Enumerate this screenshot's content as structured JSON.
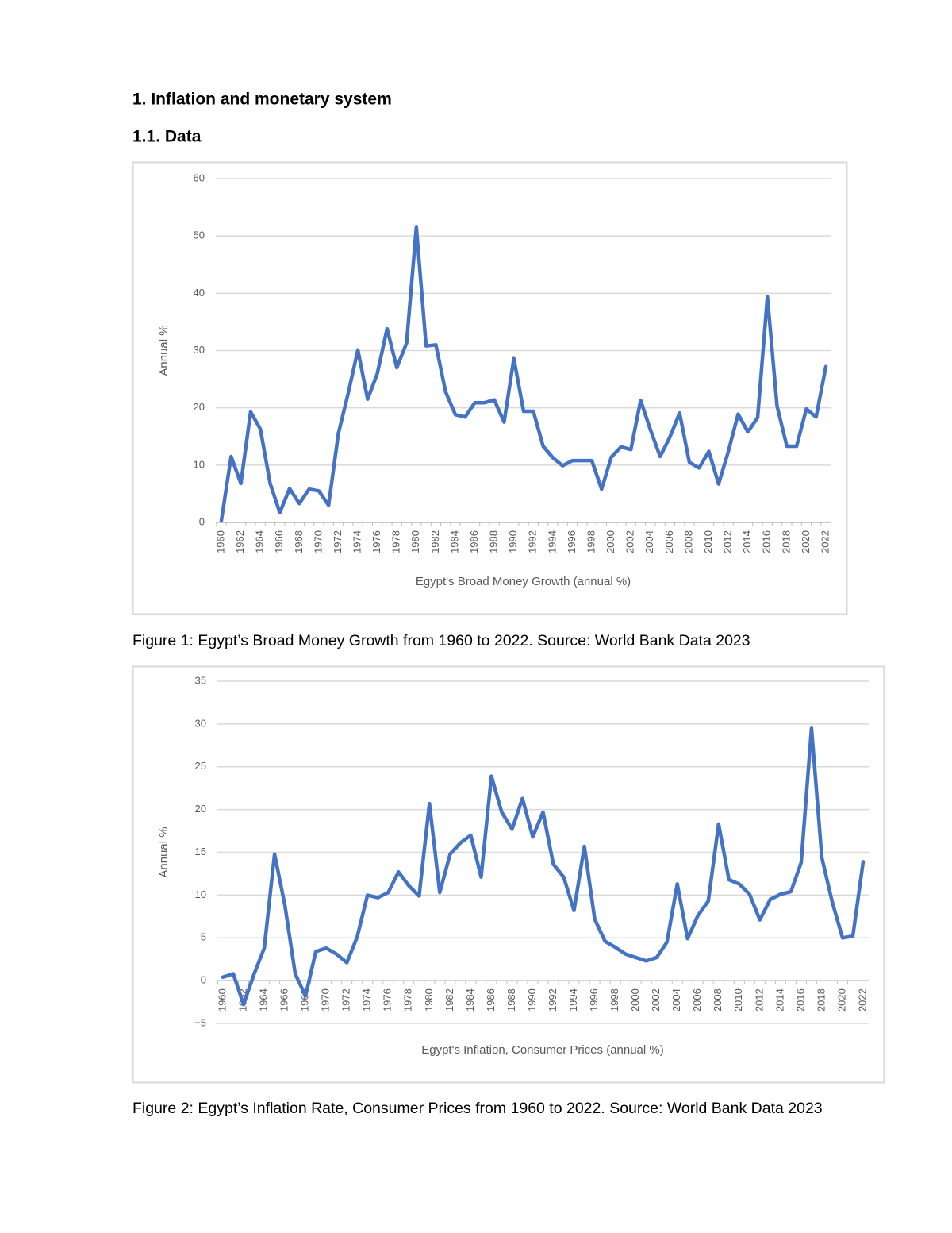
{
  "headings": [
    "1. Inflation and monetary system",
    "1.1. Data"
  ],
  "captions": [
    "Figure 1: Egypt’s Broad Money Growth from 1960 to 2022. Source: World Bank Data 2023",
    "Figure 2: Egypt’s Inflation Rate, Consumer Prices from 1960 to 2022. Source: World Bank Data 2023"
  ],
  "chart_data": [
    {
      "type": "line",
      "y_label": "Annual %",
      "x_label": "Egypt's Broad Money Growth (annual %)",
      "color": "#4472c4",
      "grid": true,
      "categories": [
        "1960",
        null,
        "1962",
        null,
        "1964",
        null,
        "1966",
        null,
        "1968",
        null,
        "1970",
        null,
        "1972",
        null,
        "1974",
        null,
        "1976",
        null,
        "1978",
        null,
        "1980",
        null,
        "1982",
        null,
        "1984",
        null,
        "1986",
        null,
        "1988",
        null,
        "1990",
        null,
        "1992",
        null,
        "1994",
        null,
        "1996",
        null,
        "1998",
        null,
        "2000",
        null,
        "2002",
        null,
        "2004",
        null,
        "2006",
        null,
        "2008",
        null,
        "2010",
        null,
        "2012",
        null,
        "2014",
        null,
        "2016",
        null,
        "2018",
        null,
        "2020",
        null,
        "2022"
      ],
      "values": [
        0.3,
        11.5,
        6.8,
        19.3,
        16.3,
        6.8,
        1.7,
        5.9,
        3.3,
        5.8,
        5.5,
        3.0,
        15.5,
        22.5,
        30.1,
        21.5,
        26.0,
        33.8,
        27.0,
        31.3,
        51.5,
        30.8,
        31.0,
        22.8,
        18.8,
        18.4,
        20.9,
        20.9,
        21.4,
        17.5,
        28.6,
        19.4,
        19.4,
        13.3,
        11.3,
        9.9,
        10.8,
        10.8,
        10.8,
        5.8,
        11.4,
        13.2,
        12.7,
        21.3,
        16.2,
        11.5,
        14.9,
        19.1,
        10.5,
        9.5,
        12.4,
        6.7,
        12.4,
        18.9,
        15.8,
        18.3,
        39.4,
        20.3,
        13.3,
        13.3,
        19.8,
        18.4,
        27.2
      ],
      "ylim": [
        0,
        60
      ],
      "yticks": [
        0,
        10,
        20,
        30,
        40,
        50,
        60
      ]
    },
    {
      "type": "line",
      "y_label": "Annual %",
      "x_label": "Egypt's Inflation, Consumer Prices (annual %)",
      "color": "#4472c4",
      "grid": true,
      "categories": [
        "1960",
        null,
        "1962",
        null,
        "1964",
        null,
        "1966",
        null,
        "1968",
        null,
        "1970",
        null,
        "1972",
        null,
        "1974",
        null,
        "1976",
        null,
        "1978",
        null,
        "1980",
        null,
        "1982",
        null,
        "1984",
        null,
        "1986",
        null,
        "1988",
        null,
        "1990",
        null,
        "1992",
        null,
        "1994",
        null,
        "1996",
        null,
        "1998",
        null,
        "2000",
        null,
        "2002",
        null,
        "2004",
        null,
        "2006",
        null,
        "2008",
        null,
        "2010",
        null,
        "2012",
        null,
        "2014",
        null,
        "2016",
        null,
        "2018",
        null,
        "2020",
        null,
        "2022"
      ],
      "values": [
        0.4,
        0.8,
        -2.8,
        0.7,
        3.8,
        14.8,
        8.8,
        0.8,
        -1.8,
        3.4,
        3.8,
        3.1,
        2.1,
        5.1,
        10.0,
        9.7,
        10.3,
        12.7,
        11.1,
        9.9,
        20.7,
        10.3,
        14.8,
        16.1,
        17.0,
        12.1,
        23.9,
        19.7,
        17.7,
        21.3,
        16.8,
        19.7,
        13.6,
        12.1,
        8.2,
        15.7,
        7.2,
        4.6,
        3.9,
        3.1,
        2.7,
        2.3,
        2.7,
        4.5,
        11.3,
        4.9,
        7.6,
        9.3,
        18.3,
        11.8,
        11.3,
        10.1,
        7.1,
        9.5,
        10.1,
        10.4,
        13.8,
        29.5,
        14.4,
        9.2,
        5.0,
        5.2,
        13.9
      ],
      "ylim": [
        -5,
        35
      ],
      "yticks": [
        {
          "value": -5,
          "label": "−5"
        },
        0,
        5,
        10,
        15,
        20,
        25,
        30,
        35
      ]
    }
  ]
}
